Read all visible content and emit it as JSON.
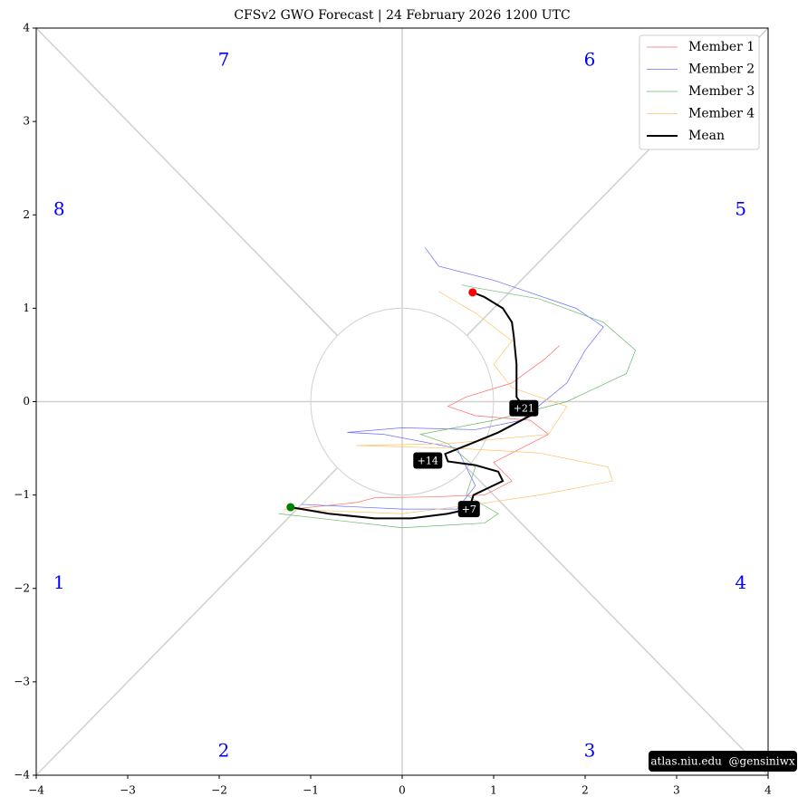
{
  "chart_data": {
    "type": "line",
    "title": "CFSv2 GWO Forecast   |   24  February  2026 1200 UTC",
    "xlim": [
      -4,
      4
    ],
    "ylim": [
      -4,
      4
    ],
    "xticks": [
      {
        "value": -4,
        "label": "−4"
      },
      {
        "value": -3,
        "label": "−3"
      },
      {
        "value": -2,
        "label": "−2"
      },
      {
        "value": -1,
        "label": "−1"
      },
      0,
      1,
      2,
      3,
      4
    ],
    "yticks": [
      {
        "value": -4,
        "label": "−4"
      },
      {
        "value": -3,
        "label": "−3"
      },
      {
        "value": -2,
        "label": "−2"
      },
      {
        "value": -1,
        "label": "−1"
      },
      0,
      1,
      2,
      3,
      4
    ],
    "legend": "upper right",
    "series": [
      {
        "name": "Member 1",
        "color": "#ff6b6b",
        "x": [
          -1.2,
          -0.5,
          -0.3,
          0.3,
          0.9,
          1.2,
          1.0,
          1.3,
          1.6,
          1.4,
          0.8,
          0.5,
          0.7,
          1.2,
          1.55,
          1.72
        ],
        "values": [
          -1.15,
          -1.08,
          -1.03,
          -1.02,
          -1.0,
          -0.85,
          -0.65,
          -0.5,
          -0.35,
          -0.2,
          -0.15,
          -0.05,
          0.05,
          0.2,
          0.45,
          0.6
        ]
      },
      {
        "name": "Member 2",
        "color": "#6b6bff",
        "x": [
          -1.1,
          0,
          0.6,
          0.8,
          0.6,
          -0.2,
          -0.6,
          0,
          0.8,
          1.3,
          1.8,
          2.0,
          2.2,
          1.9,
          1.0,
          0.4,
          0.25
        ],
        "values": [
          -1.1,
          -1.15,
          -1.15,
          -0.9,
          -0.5,
          -0.35,
          -0.33,
          -0.28,
          -0.3,
          -0.2,
          0.2,
          0.55,
          0.8,
          1.0,
          1.3,
          1.45,
          1.65
        ]
      },
      {
        "name": "Member 3",
        "color": "#6bb86b",
        "x": [
          -1.35,
          0,
          0.9,
          1.05,
          0.7,
          0.8,
          0.5,
          0.2,
          1.0,
          1.8,
          2.45,
          2.55,
          2.2,
          1.5,
          0.8,
          0.65
        ],
        "values": [
          -1.2,
          -1.35,
          -1.3,
          -1.2,
          -1.0,
          -0.7,
          -0.45,
          -0.35,
          -0.2,
          0.0,
          0.3,
          0.55,
          0.85,
          1.1,
          1.22,
          1.25
        ]
      },
      {
        "name": "Member 4",
        "color": "#ffc266",
        "x": [
          -1.3,
          0,
          0.8,
          1.5,
          2.3,
          2.25,
          1.5,
          0.6,
          -0.5,
          0.5,
          1.6,
          1.8,
          1.2,
          1.0,
          1.2,
          0.8,
          0.4
        ],
        "values": [
          -1.15,
          -1.2,
          -1.1,
          -1.0,
          -0.85,
          -0.7,
          -0.55,
          -0.5,
          -0.47,
          -0.45,
          -0.35,
          -0.05,
          0.15,
          0.4,
          0.65,
          0.95,
          1.18
        ]
      },
      {
        "name": "Mean",
        "color": "#000000",
        "x": [
          -1.22,
          -0.8,
          -0.3,
          0.1,
          0.5,
          0.73,
          0.78,
          0.95,
          1.1,
          1.05,
          0.8,
          0.5,
          0.47,
          0.75,
          1.05,
          1.4,
          1.25,
          1.25,
          1.22,
          1.2,
          1.1,
          0.9,
          0.77
        ],
        "values": [
          -1.13,
          -1.2,
          -1.25,
          -1.25,
          -1.2,
          -1.15,
          -1.0,
          -0.92,
          -0.85,
          -0.75,
          -0.68,
          -0.64,
          -0.56,
          -0.45,
          -0.33,
          -0.15,
          0.05,
          0.4,
          0.7,
          0.85,
          1.0,
          1.12,
          1.17
        ]
      }
    ],
    "day_labels": [
      {
        "label": "+7",
        "x": 0.73,
        "y": -1.15
      },
      {
        "label": "+14",
        "x": 0.28,
        "y": -0.63
      },
      {
        "label": "+21",
        "x": 1.33,
        "y": -0.07
      }
    ],
    "phase_labels": [
      "1",
      "2",
      "3",
      "4",
      "5",
      "6",
      "7",
      "8"
    ],
    "credit": "atlas.niu.edu  @gensiniwx"
  }
}
